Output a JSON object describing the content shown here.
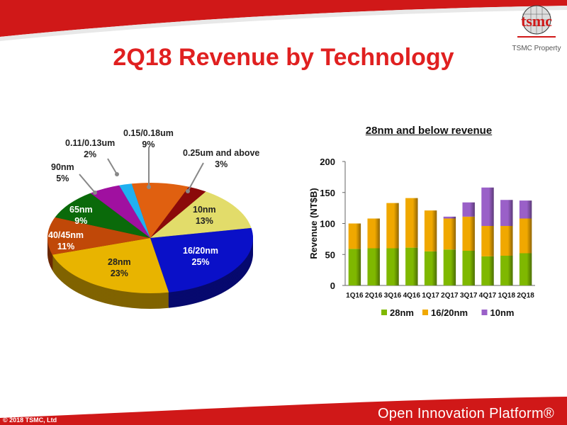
{
  "title": "2Q18 Revenue by Technology",
  "logo": {
    "text": "tsmc",
    "property": "TSMC Property"
  },
  "footer": {
    "copyright": "© 2018 TSMC, Ltd",
    "platform": "Open Innovation Platform®"
  },
  "chart_data": [
    {
      "type": "pie",
      "title": "",
      "slices": [
        {
          "label": "0.25um and above",
          "value": 3,
          "color": "#8b0a0a"
        },
        {
          "label": "10nm",
          "value": 13,
          "color": "#e2dc6a"
        },
        {
          "label": "16/20nm",
          "value": 25,
          "color": "#0a10c8"
        },
        {
          "label": "28nm",
          "value": 23,
          "color": "#e8b400"
        },
        {
          "label": "40/45nm",
          "value": 11,
          "color": "#c04808"
        },
        {
          "label": "65nm",
          "value": 9,
          "color": "#0a6a0a"
        },
        {
          "label": "90nm",
          "value": 5,
          "color": "#a010a0"
        },
        {
          "label": "0.11/0.13um",
          "value": 2,
          "color": "#20b0f0"
        },
        {
          "label": "0.15/0.18um",
          "value": 9,
          "color": "#e06010"
        }
      ]
    },
    {
      "type": "bar",
      "stacked": true,
      "title": "28nm and below revenue",
      "ylabel": "Revenue (NT$B)",
      "xlabel": "",
      "ylim": [
        0,
        200
      ],
      "yticks": [
        0,
        50,
        100,
        150,
        200
      ],
      "categories": [
        "1Q16",
        "2Q16",
        "3Q16",
        "4Q16",
        "1Q17",
        "2Q17",
        "3Q17",
        "4Q17",
        "1Q18",
        "2Q18"
      ],
      "series": [
        {
          "name": "28nm",
          "color": "#7fb800",
          "values": [
            59,
            60,
            60,
            61,
            55,
            58,
            56,
            47,
            48,
            52
          ]
        },
        {
          "name": "16/20nm",
          "color": "#f0a800",
          "values": [
            41,
            48,
            73,
            80,
            66,
            50,
            55,
            49,
            48,
            56
          ]
        },
        {
          "name": "10nm",
          "color": "#9a60c8",
          "values": [
            0,
            0,
            0,
            0,
            0,
            3,
            23,
            62,
            42,
            29
          ]
        }
      ],
      "legend": "bottom"
    }
  ]
}
